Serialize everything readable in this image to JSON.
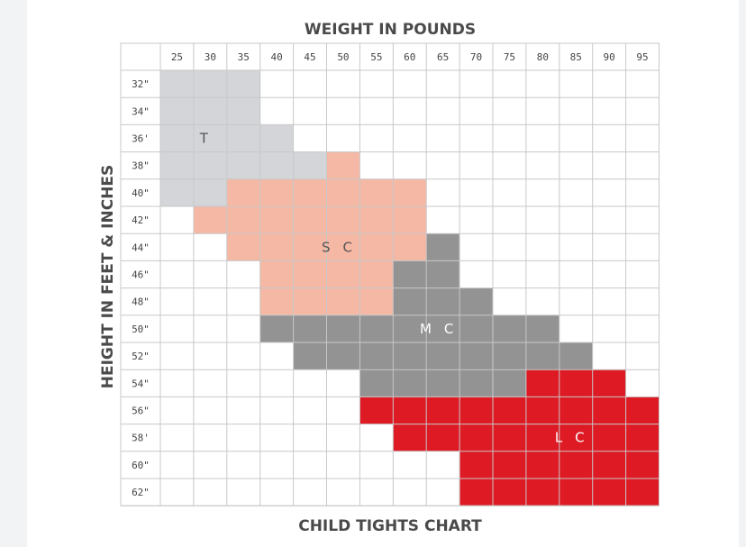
{
  "chart_data": {
    "type": "heatmap",
    "title": "WEIGHT IN POUNDS",
    "xlabel": "WEIGHT IN POUNDS",
    "ylabel": "HEIGHT IN FEET & INCHES",
    "caption": "CHILD TIGHTS CHART",
    "x_ticks": [
      "25",
      "30",
      "35",
      "40",
      "45",
      "50",
      "55",
      "60",
      "65",
      "70",
      "75",
      "80",
      "85",
      "90",
      "95"
    ],
    "y_ticks": [
      "32\"",
      "34\"",
      "36'",
      "38\"",
      "40\"",
      "42\"",
      "44\"",
      "46\"",
      "48\"",
      "50\"",
      "52\"",
      "54\"",
      "56\"",
      "58'",
      "60\"",
      "62\""
    ],
    "colors": {
      "T": "#d3d5d9",
      "S C": "#f5b8a5",
      "M C": "#939393",
      "L C": "#de1a24",
      "grid": "#c8c8c8",
      "empty": "#ffffff"
    },
    "zone_text_colors": {
      "T": "#555555",
      "S C": "#555555",
      "M C": "#ffffff",
      "L C": "#ffffff"
    },
    "rows": [
      [
        "T",
        "T",
        "T",
        ".",
        ".",
        ".",
        ".",
        ".",
        ".",
        ".",
        ".",
        ".",
        ".",
        ".",
        "."
      ],
      [
        "T",
        "T",
        "T",
        ".",
        ".",
        ".",
        ".",
        ".",
        ".",
        ".",
        ".",
        ".",
        ".",
        ".",
        "."
      ],
      [
        "T",
        "T",
        "T",
        "T",
        ".",
        ".",
        ".",
        ".",
        ".",
        ".",
        ".",
        ".",
        ".",
        ".",
        "."
      ],
      [
        "T",
        "T",
        "T",
        "T",
        "T",
        "S C",
        ".",
        ".",
        ".",
        ".",
        ".",
        ".",
        ".",
        ".",
        "."
      ],
      [
        "T",
        "T",
        "S C",
        "S C",
        "S C",
        "S C",
        "S C",
        "S C",
        ".",
        ".",
        ".",
        ".",
        ".",
        ".",
        "."
      ],
      [
        ".",
        "S C",
        "S C",
        "S C",
        "S C",
        "S C",
        "S C",
        "S C",
        ".",
        ".",
        ".",
        ".",
        ".",
        ".",
        "."
      ],
      [
        ".",
        ".",
        "S C",
        "S C",
        "S C",
        "S C",
        "S C",
        "S C",
        "M C",
        ".",
        ".",
        ".",
        ".",
        ".",
        "."
      ],
      [
        ".",
        ".",
        ".",
        "S C",
        "S C",
        "S C",
        "S C",
        "M C",
        "M C",
        ".",
        ".",
        ".",
        ".",
        ".",
        "."
      ],
      [
        ".",
        ".",
        ".",
        "S C",
        "S C",
        "S C",
        "S C",
        "M C",
        "M C",
        "M C",
        ".",
        ".",
        ".",
        ".",
        "."
      ],
      [
        ".",
        ".",
        ".",
        "M C",
        "M C",
        "M C",
        "M C",
        "M C",
        "M C",
        "M C",
        "M C",
        "M C",
        ".",
        ".",
        "."
      ],
      [
        ".",
        ".",
        ".",
        ".",
        "M C",
        "M C",
        "M C",
        "M C",
        "M C",
        "M C",
        "M C",
        "M C",
        "M C",
        ".",
        "."
      ],
      [
        ".",
        ".",
        ".",
        ".",
        ".",
        ".",
        "M C",
        "M C",
        "M C",
        "M C",
        "M C",
        "L C",
        "L C",
        "L C",
        "."
      ],
      [
        ".",
        ".",
        ".",
        ".",
        ".",
        ".",
        "L C",
        "L C",
        "L C",
        "L C",
        "L C",
        "L C",
        "L C",
        "L C",
        "L C"
      ],
      [
        ".",
        ".",
        ".",
        ".",
        ".",
        ".",
        ".",
        "L C",
        "L C",
        "L C",
        "L C",
        "L C",
        "L C",
        "L C",
        "L C"
      ],
      [
        ".",
        ".",
        ".",
        ".",
        ".",
        ".",
        ".",
        ".",
        ".",
        "L C",
        "L C",
        "L C",
        "L C",
        "L C",
        "L C"
      ],
      [
        ".",
        ".",
        ".",
        ".",
        ".",
        ".",
        ".",
        ".",
        ".",
        "L C",
        "L C",
        "L C",
        "L C",
        "L C",
        "L C"
      ]
    ],
    "zones": [
      {
        "label": "T",
        "col": 1.5,
        "row": 2.5
      },
      {
        "label": "S C",
        "col": 5.5,
        "row": 6.5
      },
      {
        "label": "M C",
        "col": 8.5,
        "row": 9.5
      },
      {
        "label": "L C",
        "col": 12.5,
        "row": 13.5
      }
    ],
    "grid": true
  }
}
